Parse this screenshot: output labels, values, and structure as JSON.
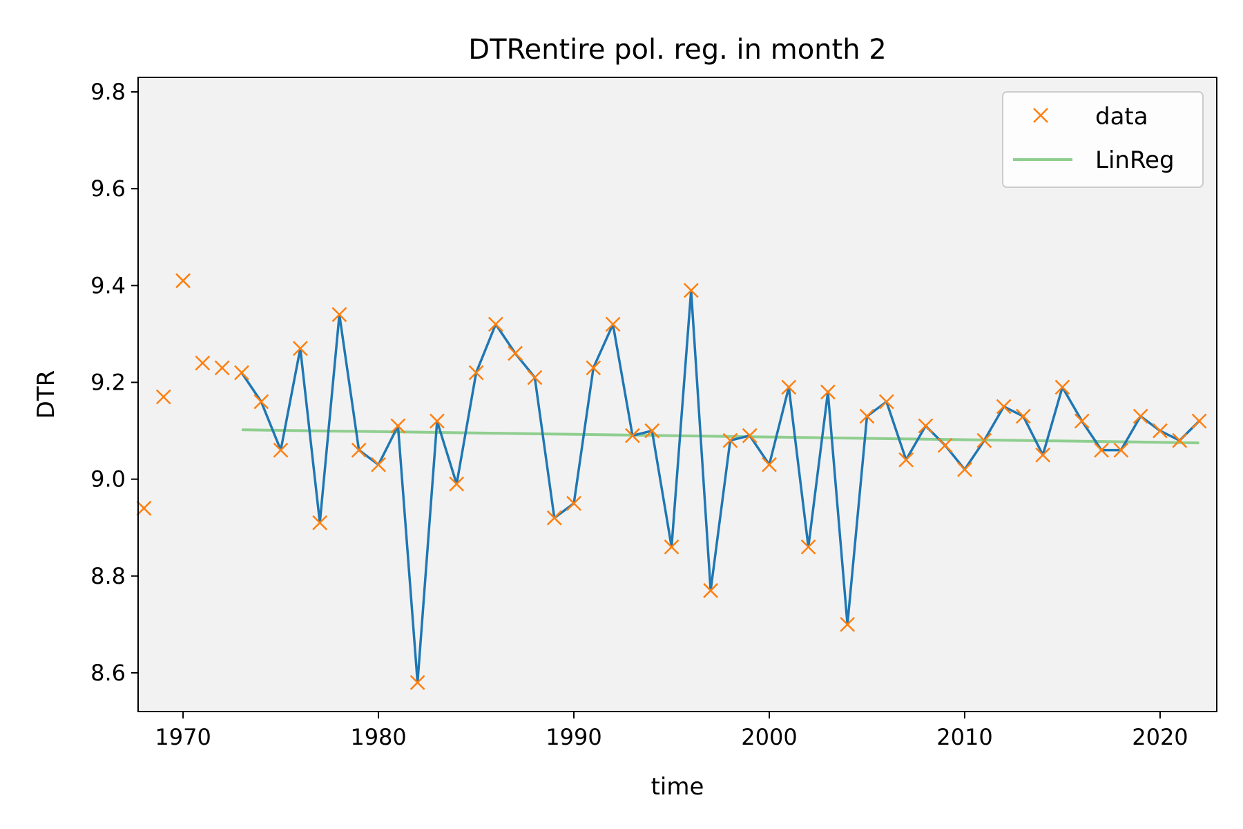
{
  "chart_data": {
    "type": "line",
    "title": "DTRentire pol. reg. in month 2",
    "xlabel": "time",
    "ylabel": "DTR",
    "xlim": [
      1967.7,
      2022.9
    ],
    "ylim": [
      8.52,
      9.83
    ],
    "xticks": [
      1970,
      1980,
      1990,
      2000,
      2010,
      2020
    ],
    "yticks": [
      8.6,
      8.8,
      9.0,
      9.2,
      9.4,
      9.6,
      9.8
    ],
    "ytick_labels": [
      "8.6",
      "8.8",
      "9.0",
      "9.2",
      "9.4",
      "9.6",
      "9.8"
    ],
    "grid": false,
    "legend_position": "top-right",
    "colors": {
      "plot_background": "#f2f2f2",
      "data_marker": "#ff7f0e",
      "line": "#1f77b4",
      "linreg": "#8fce8f"
    },
    "series": [
      {
        "name": "data",
        "style": "marker-x",
        "x": [
          1968,
          1969,
          1970,
          1971,
          1972,
          1973,
          1974,
          1975,
          1976,
          1977,
          1978,
          1979,
          1980,
          1981,
          1982,
          1983,
          1984,
          1985,
          1986,
          1987,
          1988,
          1989,
          1990,
          1991,
          1992,
          1993,
          1994,
          1995,
          1996,
          1997,
          1998,
          1999,
          2000,
          2001,
          2002,
          2003,
          2004,
          2005,
          2006,
          2007,
          2008,
          2009,
          2010,
          2011,
          2012,
          2013,
          2014,
          2015,
          2016,
          2017,
          2018,
          2019,
          2020,
          2021,
          2022
        ],
        "values": [
          8.94,
          9.17,
          9.41,
          9.24,
          9.23,
          9.22,
          9.16,
          9.06,
          9.27,
          8.91,
          9.34,
          9.06,
          9.03,
          9.11,
          8.58,
          9.12,
          8.99,
          9.22,
          9.32,
          9.26,
          9.21,
          8.92,
          8.95,
          9.23,
          9.32,
          9.09,
          9.1,
          8.86,
          9.39,
          8.77,
          9.08,
          9.09,
          9.03,
          9.19,
          8.86,
          9.18,
          8.7,
          9.13,
          9.16,
          9.04,
          9.11,
          9.07,
          9.02,
          9.08,
          9.15,
          9.13,
          9.05,
          9.19,
          9.12,
          9.06,
          9.06,
          9.13,
          9.1,
          9.08,
          9.12
        ]
      },
      {
        "style": "line",
        "x": [
          1973,
          1974,
          1975,
          1976,
          1977,
          1978,
          1979,
          1980,
          1981,
          1982,
          1983,
          1984,
          1985,
          1986,
          1987,
          1988,
          1989,
          1990,
          1991,
          1992,
          1993,
          1994,
          1995,
          1996,
          1997,
          1998,
          1999,
          2000,
          2001,
          2002,
          2003,
          2004,
          2005,
          2006,
          2007,
          2008,
          2009,
          2010,
          2011,
          2012,
          2013,
          2014,
          2015,
          2016,
          2017,
          2018,
          2019,
          2020,
          2021,
          2022
        ],
        "values": [
          9.22,
          9.16,
          9.06,
          9.27,
          8.91,
          9.34,
          9.06,
          9.03,
          9.11,
          8.58,
          9.12,
          8.99,
          9.22,
          9.32,
          9.26,
          9.21,
          8.92,
          8.95,
          9.23,
          9.32,
          9.09,
          9.1,
          8.86,
          9.39,
          8.77,
          9.08,
          9.09,
          9.03,
          9.19,
          8.86,
          9.18,
          8.7,
          9.13,
          9.16,
          9.04,
          9.11,
          9.07,
          9.02,
          9.08,
          9.15,
          9.13,
          9.05,
          9.19,
          9.12,
          9.06,
          9.06,
          9.13,
          9.1,
          9.08,
          9.12
        ]
      },
      {
        "name": "LinReg",
        "style": "line",
        "x": [
          1973,
          2022
        ],
        "values": [
          9.102,
          9.075
        ]
      }
    ]
  }
}
